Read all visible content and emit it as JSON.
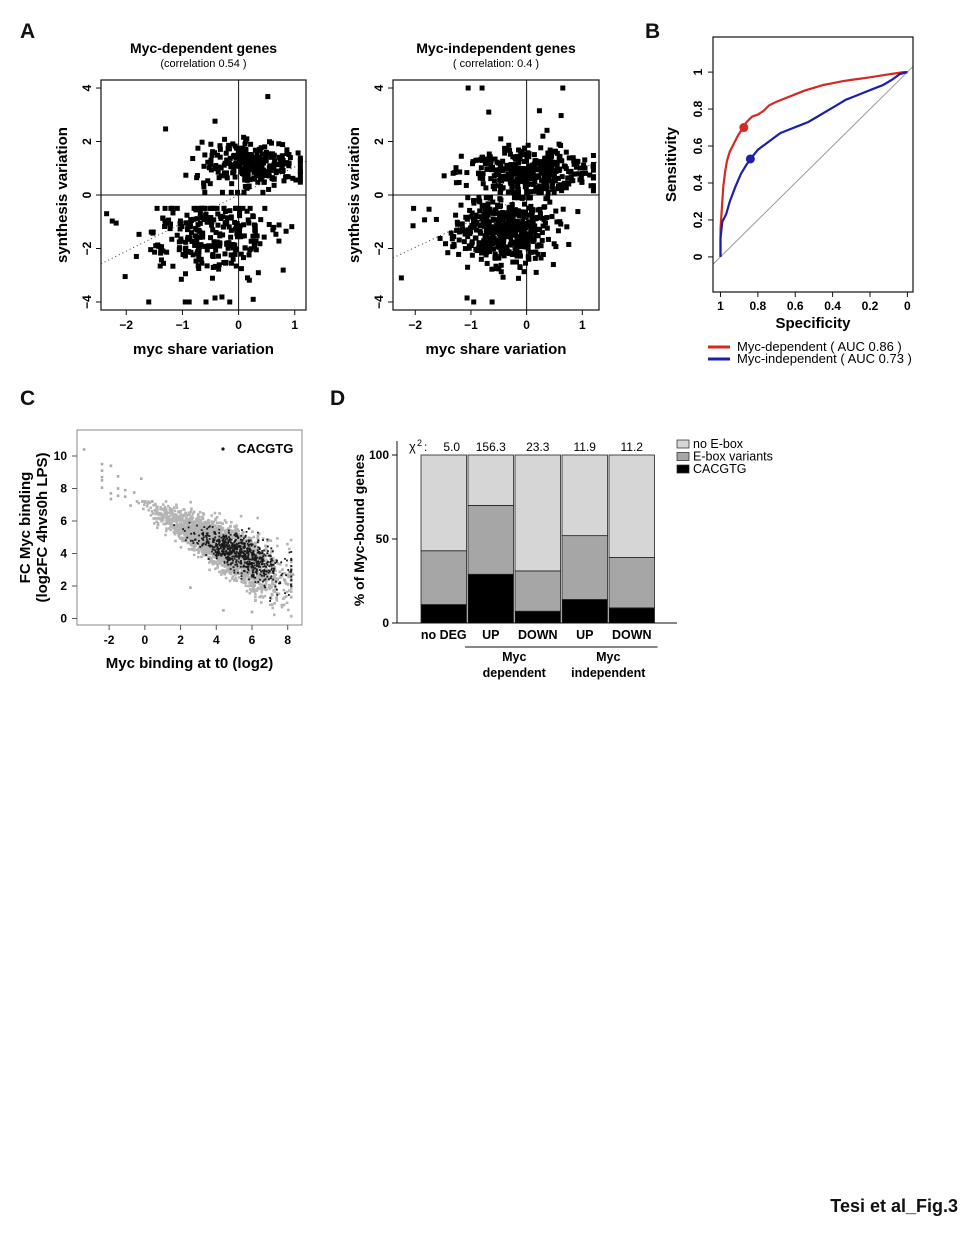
{
  "figure": {
    "panel_labels": [
      "A",
      "B",
      "C",
      "D"
    ],
    "footer": "Tesi et al_Fig.3"
  },
  "chart_data": [
    {
      "id": "A1",
      "type": "scatter",
      "title": "Myc-dependent genes",
      "subtitle": "(correlation 0.54 )",
      "xlabel": "myc share variation",
      "ylabel": "synthesis variation",
      "xlim": [
        -2.45,
        1.2
      ],
      "ylim": [
        -4.3,
        4.3
      ],
      "xticks": [
        -2,
        -1,
        0,
        1
      ],
      "xtick_labels": [
        "−2",
        "−1",
        "0",
        "1"
      ],
      "yticks": [
        -4,
        -2,
        0,
        2,
        4
      ],
      "ytick_labels": [
        "−4",
        "−2",
        "0",
        "2",
        "4"
      ],
      "reference_lines": {
        "x": 0,
        "y": 0
      },
      "regression_line": {
        "slope": 1.05,
        "intercept": 0.0,
        "style": "dotted"
      },
      "clusters": [
        {
          "n": 260,
          "x_mean": 0.25,
          "x_sd": 0.45,
          "y_mean": 1.15,
          "y_sd": 0.45,
          "y_min": 0.1,
          "y_max": 3.7
        },
        {
          "n": 270,
          "x_mean": -0.55,
          "x_sd": 0.55,
          "y_mean": -1.5,
          "y_sd": 0.75,
          "y_min": -4.0,
          "y_max": -0.5
        }
      ],
      "points": [
        [
          0.52,
          3.68
        ],
        [
          -0.42,
          2.76
        ],
        [
          -1.3,
          2.47
        ],
        [
          -2.35,
          -0.7
        ],
        [
          -2.18,
          -1.05
        ],
        [
          -2.02,
          -3.05
        ],
        [
          -1.6,
          -4.0
        ],
        [
          -0.95,
          -4.0
        ],
        [
          -0.88,
          -4.0
        ],
        [
          -0.58,
          -4.0
        ],
        [
          -0.42,
          -3.85
        ],
        [
          -1.82,
          -2.3
        ],
        [
          0.72,
          -1.12
        ]
      ]
    },
    {
      "id": "A2",
      "type": "scatter",
      "title": "Myc-independent genes",
      "subtitle": "( correlation:  0.4 )",
      "xlabel": "myc share variation",
      "ylabel": "synthesis variation",
      "xlim": [
        -2.4,
        1.3
      ],
      "ylim": [
        -4.3,
        4.3
      ],
      "xticks": [
        -2,
        -1,
        0,
        1
      ],
      "xtick_labels": [
        "−2",
        "−1",
        "0",
        "1"
      ],
      "yticks": [
        -4,
        -2,
        0,
        2,
        4
      ],
      "ytick_labels": [
        "−4",
        "−2",
        "0",
        "2",
        "4"
      ],
      "reference_lines": {
        "x": 0,
        "y": 0
      },
      "regression_line": {
        "slope": 0.98,
        "intercept": 0.0,
        "style": "dotted"
      },
      "clusters": [
        {
          "n": 380,
          "x_mean": 0.05,
          "x_sd": 0.55,
          "y_mean": 0.9,
          "y_sd": 0.45,
          "y_min": 0.1,
          "y_max": 3.2
        },
        {
          "n": 480,
          "x_mean": -0.45,
          "x_sd": 0.45,
          "y_mean": -1.3,
          "y_sd": 0.65,
          "y_min": -4.0,
          "y_max": -0.1
        }
      ],
      "points": [
        [
          -1.05,
          4.0
        ],
        [
          -0.8,
          4.0
        ],
        [
          0.65,
          4.0
        ],
        [
          -0.68,
          3.1
        ],
        [
          0.23,
          3.15
        ],
        [
          0.62,
          2.97
        ],
        [
          -2.25,
          -3.1
        ],
        [
          -2.03,
          -0.5
        ],
        [
          -2.04,
          -1.15
        ],
        [
          -0.95,
          -4.0
        ],
        [
          -0.62,
          -4.0
        ],
        [
          -1.07,
          -3.85
        ],
        [
          1.2,
          0.35
        ],
        [
          0.92,
          -0.62
        ]
      ]
    },
    {
      "id": "B",
      "type": "line",
      "xlabel": "Specificity",
      "ylabel": "Sensitivity",
      "xlim": [
        1.04,
        -0.03
      ],
      "ylim": [
        -0.19,
        1.19
      ],
      "xticks": [
        1,
        0.8,
        0.6,
        0.4,
        0.2,
        0
      ],
      "xtick_labels": [
        "1",
        "0.8",
        "0.6",
        "0.4",
        "0.2",
        "0"
      ],
      "yticks": [
        0,
        0.2,
        0.4,
        0.6,
        0.8,
        1
      ],
      "ytick_labels": [
        "0",
        "0.2",
        "0.4",
        "0.6",
        "0.8",
        "1"
      ],
      "diagonal": true,
      "series": [
        {
          "name": "Myc-dependent",
          "legend": "Myc-dependent ( AUC 0.86 )",
          "auc": 0.86,
          "color": "#d42a22",
          "x": [
            1.0,
            1.0,
            0.99,
            0.985,
            0.975,
            0.965,
            0.95,
            0.93,
            0.91,
            0.88,
            0.86,
            0.83,
            0.8,
            0.77,
            0.74,
            0.7,
            0.65,
            0.6,
            0.55,
            0.5,
            0.45,
            0.4,
            0.35,
            0.3,
            0.25,
            0.2,
            0.15,
            0.1,
            0.05,
            0.02,
            0.0
          ],
          "y": [
            0.0,
            0.15,
            0.3,
            0.38,
            0.46,
            0.52,
            0.57,
            0.61,
            0.65,
            0.7,
            0.73,
            0.76,
            0.77,
            0.79,
            0.82,
            0.84,
            0.86,
            0.88,
            0.9,
            0.915,
            0.93,
            0.94,
            0.95,
            0.958,
            0.965,
            0.972,
            0.98,
            0.988,
            0.995,
            1.0,
            1.0
          ],
          "marker": {
            "x": 0.875,
            "y": 0.7
          }
        },
        {
          "name": "Myc-independent",
          "legend": "Myc-independent ( AUC 0.73 )",
          "auc": 0.73,
          "color": "#1b20a6",
          "x": [
            1.0,
            1.0,
            0.99,
            0.97,
            0.95,
            0.92,
            0.89,
            0.86,
            0.84,
            0.8,
            0.76,
            0.72,
            0.68,
            0.63,
            0.58,
            0.53,
            0.48,
            0.43,
            0.38,
            0.33,
            0.28,
            0.23,
            0.18,
            0.13,
            0.08,
            0.04,
            0.0
          ],
          "y": [
            0.0,
            0.1,
            0.19,
            0.23,
            0.3,
            0.38,
            0.45,
            0.5,
            0.53,
            0.58,
            0.61,
            0.64,
            0.67,
            0.69,
            0.71,
            0.73,
            0.76,
            0.79,
            0.82,
            0.85,
            0.87,
            0.89,
            0.91,
            0.93,
            0.96,
            0.99,
            1.0
          ],
          "marker": {
            "x": 0.84,
            "y": 0.53
          }
        }
      ],
      "legend_position": "bottom"
    },
    {
      "id": "C",
      "type": "scatter",
      "xlabel": "Myc binding at t0 (log2)",
      "ylabel_line1": "FC Myc binding",
      "ylabel_line2": "(log2FC 4hvs0h LPS)",
      "xlim": [
        -3.8,
        8.8
      ],
      "ylim": [
        -0.4,
        11.6
      ],
      "xticks": [
        -2,
        0,
        2,
        4,
        6,
        8
      ],
      "xtick_labels": [
        "-2",
        "0",
        "2",
        "4",
        "6",
        "8"
      ],
      "yticks": [
        0,
        2,
        4,
        6,
        8,
        10
      ],
      "ytick_labels": [
        "0",
        "2",
        "4",
        "6",
        "8",
        "10"
      ],
      "legend": {
        "label": "CACGTG",
        "position": "top-right"
      },
      "series": [
        {
          "name": "other",
          "color": "#b4b4b4",
          "n": 2600,
          "trend": {
            "slope": -0.78,
            "intercept": 7.0
          }
        },
        {
          "name": "CACGTG",
          "color": "#1a1a1a",
          "n": 700,
          "trend": {
            "slope": -0.6,
            "intercept": 6.3
          }
        }
      ],
      "points": [
        [
          -3.4,
          10.4
        ],
        [
          -2.4,
          9.5
        ],
        [
          -2.4,
          9.1
        ],
        [
          -2.4,
          8.7
        ],
        [
          -2.4,
          8.5
        ],
        [
          -2.4,
          8.05
        ],
        [
          -1.9,
          9.4
        ],
        [
          -1.9,
          7.7
        ],
        [
          -1.9,
          7.35
        ],
        [
          -1.5,
          8.75
        ],
        [
          -1.5,
          8.0
        ],
        [
          -1.5,
          7.55
        ],
        [
          -1.1,
          7.9
        ],
        [
          -1.1,
          7.5
        ],
        [
          -0.2,
          8.6
        ],
        [
          -0.6,
          7.75
        ],
        [
          -0.8,
          6.95
        ],
        [
          0.4,
          7.2
        ],
        [
          2.55,
          1.9
        ],
        [
          4.4,
          0.5
        ],
        [
          6.0,
          0.4
        ],
        [
          8.3,
          2.7
        ],
        [
          7.8,
          2.4
        ]
      ]
    },
    {
      "id": "D",
      "type": "bar",
      "stacked": true,
      "ylabel": "% of Myc-bound genes",
      "ylim": [
        0,
        100
      ],
      "yticks": [
        0,
        50,
        100
      ],
      "ytick_labels": [
        "0",
        "50",
        "100"
      ],
      "categories": [
        "no DEG",
        "UP",
        "DOWN",
        "UP",
        "DOWN"
      ],
      "groups": [
        {
          "label_line1": "Myc",
          "label_line2": "dependent",
          "from": 1,
          "to": 2
        },
        {
          "label_line1": "Myc",
          "label_line2": "independent",
          "from": 3,
          "to": 4
        }
      ],
      "chi2_prefix": "χ",
      "chi2_sup": "2",
      "chi2_values": [
        "5.0",
        "156.3",
        "23.3",
        "11.9",
        "11.2"
      ],
      "series": [
        {
          "name": "CACGTG",
          "color": "#000000",
          "values": [
            11,
            29,
            7,
            14,
            9
          ]
        },
        {
          "name": "E-box variants",
          "color": "#a6a6a6",
          "values": [
            32,
            41,
            24,
            38,
            30
          ]
        },
        {
          "name": "no E-box",
          "color": "#d6d6d6",
          "values": [
            57,
            30,
            69,
            48,
            61
          ]
        }
      ],
      "legend_order": [
        "no E-box",
        "E-box variants",
        "CACGTG"
      ],
      "legend_position": "right"
    }
  ]
}
